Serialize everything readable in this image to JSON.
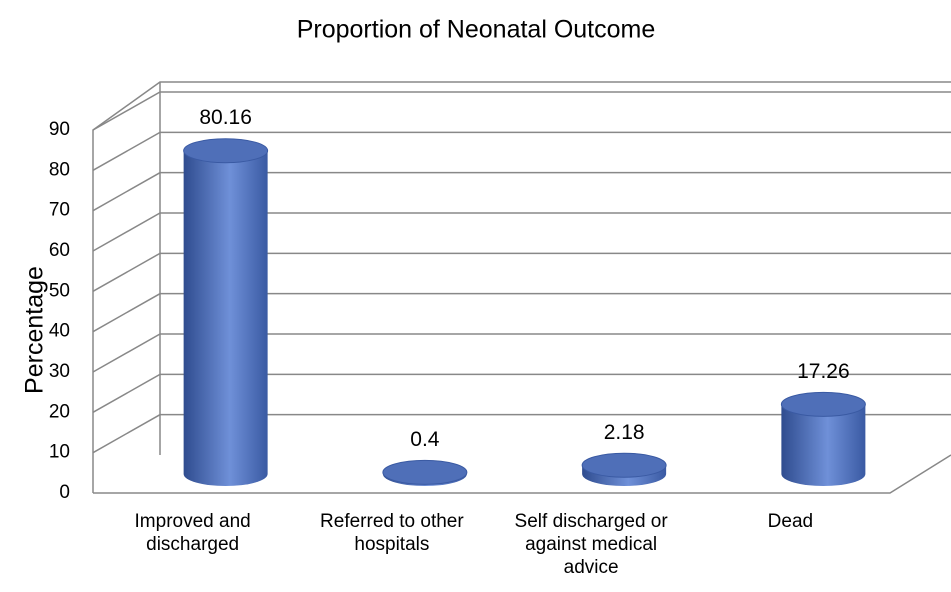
{
  "chart_data": {
    "type": "bar3d",
    "title": "Proportion of Neonatal Outcome",
    "y_label": "Percentage",
    "categories": [
      "Improved and discharged",
      "Referred to other hospitals",
      "Self discharged or against medical advice",
      "Dead"
    ],
    "values": [
      80.16,
      0.4,
      2.18,
      17.26
    ],
    "color": "#4f6fb8",
    "ylim": [
      0,
      90
    ],
    "yticks": [
      0,
      10,
      20,
      30,
      40,
      50,
      60,
      70,
      80,
      90
    ],
    "grid": true
  }
}
